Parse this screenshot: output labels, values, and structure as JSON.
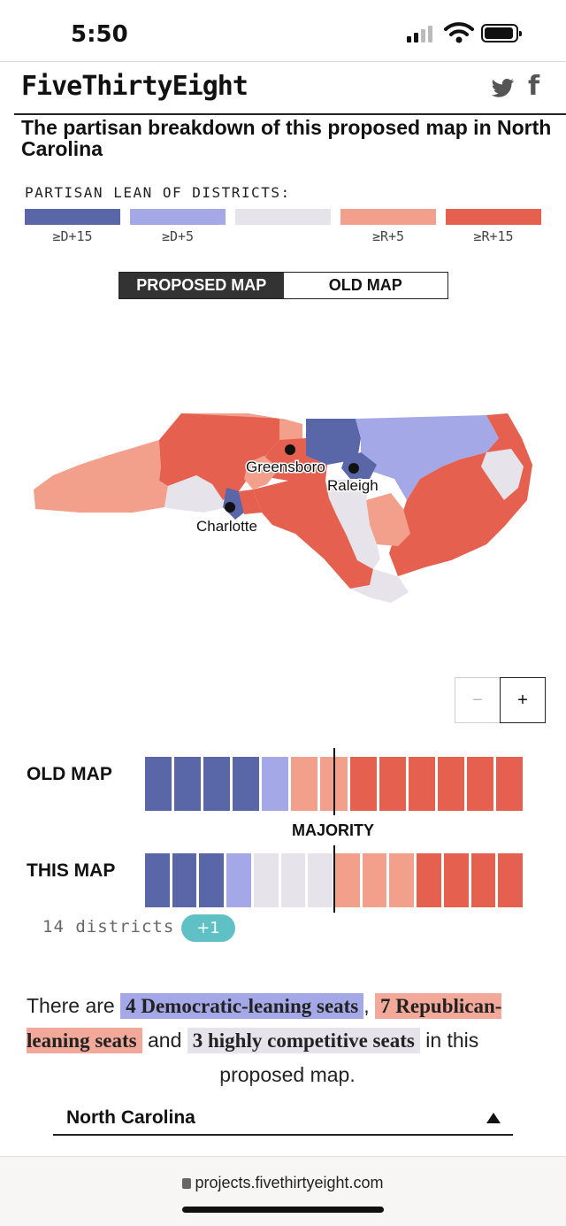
{
  "status_bar": {
    "time": "5:50"
  },
  "header": {
    "logo": "FiveThirtyEight"
  },
  "chart_title": "The partisan breakdown of this proposed map in North Carolina",
  "legend": {
    "label": "PARTISAN LEAN OF DISTRICTS:",
    "items": [
      {
        "label": "≥D+15",
        "color": "#5966a8"
      },
      {
        "label": "≥D+5",
        "color": "#a4a8e6"
      },
      {
        "label": "",
        "color": "#e6e3eb"
      },
      {
        "label": "≥R+5",
        "color": "#f2a08c"
      },
      {
        "label": "≥R+15",
        "color": "#e5604f"
      }
    ]
  },
  "toggle": {
    "proposed": "PROPOSED MAP",
    "old": "OLD MAP",
    "selected": "proposed"
  },
  "map": {
    "cities": [
      "Greensboro",
      "Raleigh",
      "Charlotte"
    ]
  },
  "zoom": {
    "out": "−",
    "in": "+"
  },
  "seat_chart": {
    "old_label": "OLD MAP",
    "this_label": "THIS MAP",
    "majority_label": "MAJORITY",
    "old_map": [
      "strong-d",
      "strong-d",
      "strong-d",
      "strong-d",
      "lean-d",
      "lean-r",
      "lean-r",
      "strong-r",
      "strong-r",
      "strong-r",
      "strong-r",
      "strong-r",
      "strong-r"
    ],
    "this_map": [
      "strong-d",
      "strong-d",
      "strong-d",
      "lean-d",
      "comp",
      "comp",
      "comp",
      "lean-r",
      "lean-r",
      "lean-r",
      "strong-r",
      "strong-r",
      "strong-r",
      "strong-r"
    ],
    "districts_text": "14 districts",
    "badge": "+1"
  },
  "summary": {
    "p1": "There are",
    "dem": "4 Democratic-leaning seats",
    "comma": ",",
    "rep": "7 Republican-leaning seats",
    "and": "and",
    "comp": "3 highly competitive seats",
    "p2": "in this",
    "p3": "proposed map."
  },
  "state_select": {
    "value": "North Carolina"
  },
  "browser": {
    "url": "projects.fivethirtyeight.com"
  }
}
